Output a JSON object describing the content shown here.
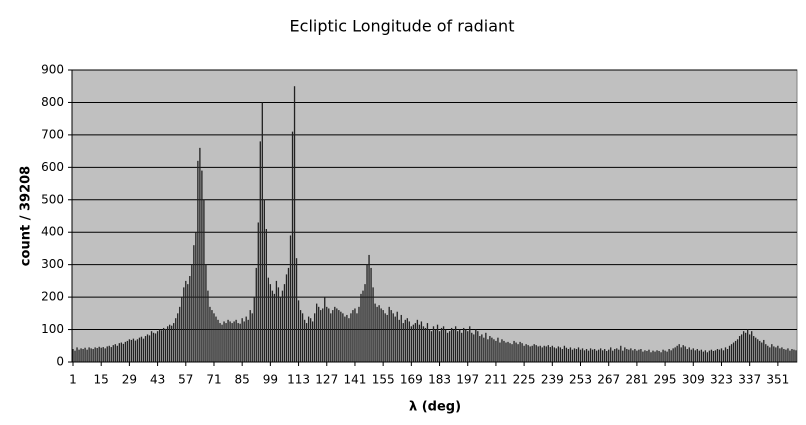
{
  "chart_data": {
    "type": "bar",
    "title": "Ecliptic Longitude of radiant",
    "x_label": "λ (deg)",
    "y_label": "count / 39208",
    "color": "#222222",
    "background": "#c0c0c0",
    "grid": true,
    "xlim": [
      0.5,
      360.5
    ],
    "ylim": [
      0,
      900
    ],
    "xticks": [
      1,
      15,
      29,
      43,
      57,
      71,
      85,
      99,
      113,
      127,
      141,
      155,
      169,
      183,
      197,
      211,
      225,
      239,
      253,
      267,
      281,
      295,
      309,
      323,
      337,
      351
    ],
    "yticks": [
      0,
      100,
      200,
      300,
      400,
      500,
      600,
      700,
      800,
      900
    ],
    "x": [
      1,
      2,
      3,
      4,
      5,
      6,
      7,
      8,
      9,
      10,
      11,
      12,
      13,
      14,
      15,
      16,
      17,
      18,
      19,
      20,
      21,
      22,
      23,
      24,
      25,
      26,
      27,
      28,
      29,
      30,
      31,
      32,
      33,
      34,
      35,
      36,
      37,
      38,
      39,
      40,
      41,
      42,
      43,
      44,
      45,
      46,
      47,
      48,
      49,
      50,
      51,
      52,
      53,
      54,
      55,
      56,
      57,
      58,
      59,
      60,
      61,
      62,
      63,
      64,
      65,
      66,
      67,
      68,
      69,
      70,
      71,
      72,
      73,
      74,
      75,
      76,
      77,
      78,
      79,
      80,
      81,
      82,
      83,
      84,
      85,
      86,
      87,
      88,
      89,
      90,
      91,
      92,
      93,
      94,
      95,
      96,
      97,
      98,
      99,
      100,
      101,
      102,
      103,
      104,
      105,
      106,
      107,
      108,
      109,
      110,
      111,
      112,
      113,
      114,
      115,
      116,
      117,
      118,
      119,
      120,
      121,
      122,
      123,
      124,
      125,
      126,
      127,
      128,
      129,
      130,
      131,
      132,
      133,
      134,
      135,
      136,
      137,
      138,
      139,
      140,
      141,
      142,
      143,
      144,
      145,
      146,
      147,
      148,
      149,
      150,
      151,
      152,
      153,
      154,
      155,
      156,
      157,
      158,
      159,
      160,
      161,
      162,
      163,
      164,
      165,
      166,
      167,
      168,
      169,
      170,
      171,
      172,
      173,
      174,
      175,
      176,
      177,
      178,
      179,
      180,
      181,
      182,
      183,
      184,
      185,
      186,
      187,
      188,
      189,
      190,
      191,
      192,
      193,
      194,
      195,
      196,
      197,
      198,
      199,
      200,
      201,
      202,
      203,
      204,
      205,
      206,
      207,
      208,
      209,
      210,
      211,
      212,
      213,
      214,
      215,
      216,
      217,
      218,
      219,
      220,
      221,
      222,
      223,
      224,
      225,
      226,
      227,
      228,
      229,
      230,
      231,
      232,
      233,
      234,
      235,
      236,
      237,
      238,
      239,
      240,
      241,
      242,
      243,
      244,
      245,
      246,
      247,
      248,
      249,
      250,
      251,
      252,
      253,
      254,
      255,
      256,
      257,
      258,
      259,
      260,
      261,
      262,
      263,
      264,
      265,
      266,
      267,
      268,
      269,
      270,
      271,
      272,
      273,
      274,
      275,
      276,
      277,
      278,
      279,
      280,
      281,
      282,
      283,
      284,
      285,
      286,
      287,
      288,
      289,
      290,
      291,
      292,
      293,
      294,
      295,
      296,
      297,
      298,
      299,
      300,
      301,
      302,
      303,
      304,
      305,
      306,
      307,
      308,
      309,
      310,
      311,
      312,
      313,
      314,
      315,
      316,
      317,
      318,
      319,
      320,
      321,
      322,
      323,
      324,
      325,
      326,
      327,
      328,
      329,
      330,
      331,
      332,
      333,
      334,
      335,
      336,
      337,
      338,
      339,
      340,
      341,
      342,
      343,
      344,
      345,
      346,
      347,
      348,
      349,
      350,
      351,
      352,
      353,
      354,
      355,
      356,
      357,
      358,
      359,
      360
    ],
    "values": [
      40,
      35,
      45,
      38,
      42,
      40,
      44,
      38,
      45,
      42,
      40,
      45,
      43,
      47,
      44,
      46,
      42,
      48,
      50,
      46,
      52,
      55,
      50,
      58,
      60,
      56,
      62,
      65,
      70,
      68,
      72,
      66,
      70,
      75,
      78,
      72,
      80,
      85,
      82,
      95,
      90,
      88,
      95,
      100,
      98,
      105,
      102,
      110,
      115,
      112,
      120,
      135,
      150,
      170,
      200,
      230,
      250,
      240,
      265,
      300,
      360,
      400,
      620,
      660,
      590,
      500,
      300,
      220,
      170,
      160,
      150,
      140,
      130,
      120,
      115,
      125,
      120,
      130,
      125,
      120,
      125,
      130,
      120,
      118,
      135,
      125,
      140,
      130,
      160,
      150,
      200,
      290,
      430,
      680,
      800,
      500,
      410,
      260,
      240,
      220,
      210,
      250,
      230,
      200,
      220,
      240,
      270,
      290,
      390,
      710,
      850,
      320,
      190,
      160,
      150,
      130,
      120,
      140,
      135,
      125,
      150,
      180,
      170,
      160,
      165,
      200,
      170,
      165,
      150,
      160,
      170,
      165,
      160,
      155,
      150,
      140,
      145,
      135,
      150,
      160,
      165,
      150,
      170,
      210,
      220,
      240,
      300,
      330,
      290,
      230,
      180,
      170,
      175,
      165,
      160,
      150,
      145,
      170,
      160,
      150,
      140,
      155,
      130,
      145,
      120,
      130,
      135,
      125,
      110,
      115,
      120,
      130,
      115,
      125,
      110,
      105,
      120,
      100,
      95,
      110,
      100,
      115,
      95,
      105,
      110,
      100,
      90,
      95,
      105,
      100,
      110,
      95,
      100,
      90,
      105,
      100,
      95,
      110,
      90,
      85,
      100,
      95,
      80,
      85,
      75,
      90,
      70,
      80,
      75,
      70,
      65,
      75,
      60,
      70,
      65,
      60,
      62,
      58,
      55,
      65,
      60,
      55,
      62,
      58,
      50,
      55,
      52,
      48,
      50,
      55,
      52,
      48,
      50,
      45,
      50,
      48,
      52,
      46,
      50,
      45,
      42,
      48,
      45,
      40,
      50,
      44,
      40,
      45,
      38,
      42,
      40,
      45,
      38,
      42,
      36,
      40,
      35,
      42,
      38,
      40,
      35,
      38,
      42,
      36,
      40,
      34,
      38,
      45,
      35,
      40,
      42,
      38,
      50,
      35,
      45,
      40,
      38,
      42,
      36,
      40,
      35,
      38,
      40,
      32,
      36,
      34,
      38,
      30,
      35,
      32,
      36,
      34,
      30,
      38,
      35,
      32,
      40,
      36,
      42,
      45,
      50,
      55,
      45,
      52,
      48,
      40,
      45,
      38,
      42,
      36,
      40,
      35,
      38,
      32,
      36,
      30,
      35,
      38,
      34,
      36,
      40,
      38,
      42,
      36,
      45,
      40,
      50,
      55,
      60,
      65,
      70,
      80,
      85,
      95,
      90,
      100,
      85,
      95,
      80,
      75,
      70,
      65,
      60,
      68,
      55,
      50,
      45,
      55,
      48,
      45,
      50,
      42,
      45,
      40,
      38,
      42,
      35,
      40,
      38,
      36
    ]
  }
}
